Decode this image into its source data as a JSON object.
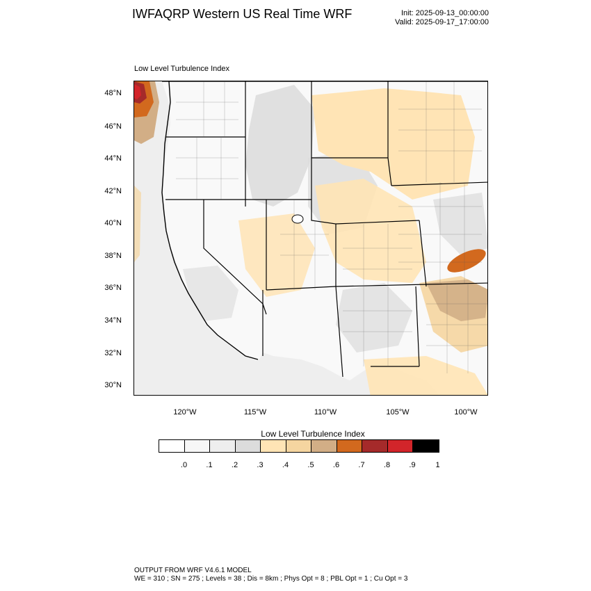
{
  "header": {
    "title": "IWFAQRP Western US Real Time WRF",
    "init": "Init: 2025-09-13_00:00:00",
    "valid": "Valid: 2025-09-17_17:00:00"
  },
  "map": {
    "panel_label": "Low Level Turbulence Index",
    "lat_labels": [
      "48°N",
      "46°N",
      "44°N",
      "42°N",
      "40°N",
      "38°N",
      "36°N",
      "34°N",
      "32°N",
      "30°N"
    ],
    "lon_labels": [
      "120°W",
      "115°W",
      "110°W",
      "105°W",
      "100°W"
    ],
    "field_name": "Low Level Turbulence Index"
  },
  "colorbar": {
    "title": "Low Level Turbulence Index",
    "colors": [
      "#ffffff",
      "#f7f7f7",
      "#eeeeee",
      "#dcdcdc",
      "#ffe4b5",
      "#f5d5a0",
      "#d2ae86",
      "#d2691e",
      "#a52a2a",
      "#d2252a",
      "#000000"
    ],
    "tick_labels": [
      ".0",
      ".1",
      ".2",
      ".3",
      ".4",
      ".5",
      ".6",
      ".7",
      ".8",
      ".9",
      "1"
    ]
  },
  "footer": {
    "line1": "OUTPUT FROM WRF V4.6.1 MODEL",
    "line2": "WE = 310 ; SN = 275 ; Levels = 38 ; Dis = 8km ; Phys Opt = 8 ; PBL Opt = 1 ; Cu Opt = 3"
  }
}
